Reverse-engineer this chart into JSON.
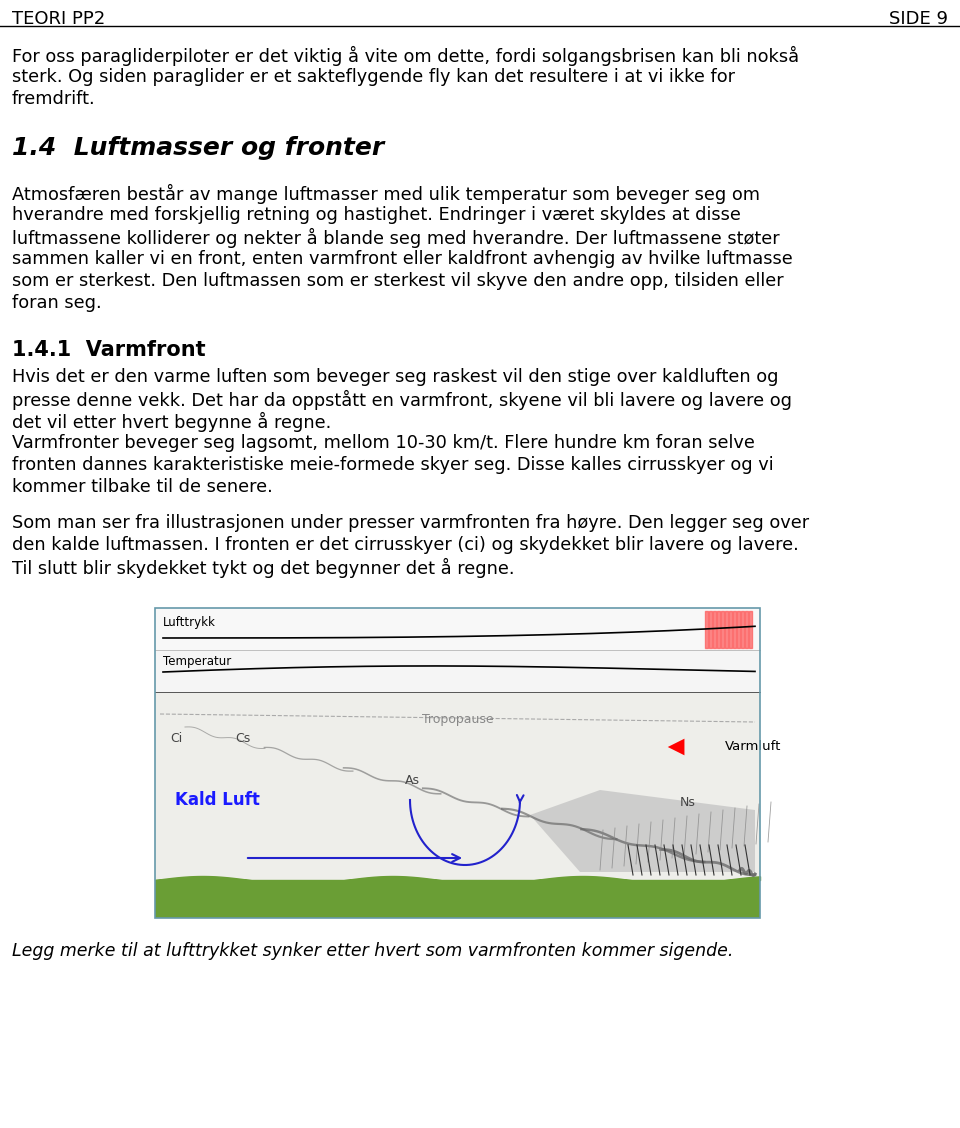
{
  "header_left": "Teori PP2",
  "header_right": "Side 9",
  "background": "#ffffff",
  "text_color": "#000000",
  "intro_text": "For oss paragliderpiloter er det viktig å vite om dette, fordi solgangsbrisen kan bli nokså\nsterk. Og siden paraglider er et sakteflygende fly kan det resultere i at vi ikke for\nfremdrift.",
  "section_title": "1.4  Luftmasser og fronter",
  "section_body": "Atmosfæren består av mange luftmasser med ulik temperatur som beveger seg om\nhverandre med forskjellig retning og hastighet. Endringer i været skyldes at disse\nluftmassene kolliderer og nekter å blande seg med hverandre. Der luftmassene støter\nsammen kaller vi en front, enten varmfront eller kaldfront avhengig av hvilke luftmasse\nsom er sterkest. Den luftmassen som er sterkest vil skyve den andre opp, tilsiden eller\nforan seg.",
  "subsection_title": "1.4.1  Varmfront",
  "subsection_body1": "Hvis det er den varme luften som beveger seg raskest vil den stige over kaldluften og\npresse denne vekk. Det har da oppstått en varmfront, skyene vil bli lavere og lavere og\ndet vil etter hvert begynne å regne.\nVarmfronter beveger seg lagsomt, mellom 10-30 km/t. Flere hundre km foran selve\nfronten dannes karakteristiske meie-formede skyer seg. Disse kalles cirrusskyer og vi\nkommer tilbake til de senere.",
  "subsection_body2": "Som man ser fra illustrasjonen under presser varmfronten fra høyre. Den legger seg over\nden kalde luftmassen. I fronten er det cirrusskyer (ci) og skydekket blir lavere og lavere.\nTil slutt blir skydekket tykt og det begynner det å regne.",
  "caption": "Legg merke til at lufttrykket synker etter hvert som varmfronten kommer sigende.",
  "img_label_lufttrykk": "Lufttrykk",
  "img_label_temperatur": "Temperatur",
  "img_label_tropopause": "Tropopause",
  "img_label_ci": "Ci",
  "img_label_cs": "Cs",
  "img_label_as": "As",
  "img_label_ns": "Ns",
  "img_label_varmluft": "Varmluft",
  "img_label_kald_luft": "Kald Luft"
}
